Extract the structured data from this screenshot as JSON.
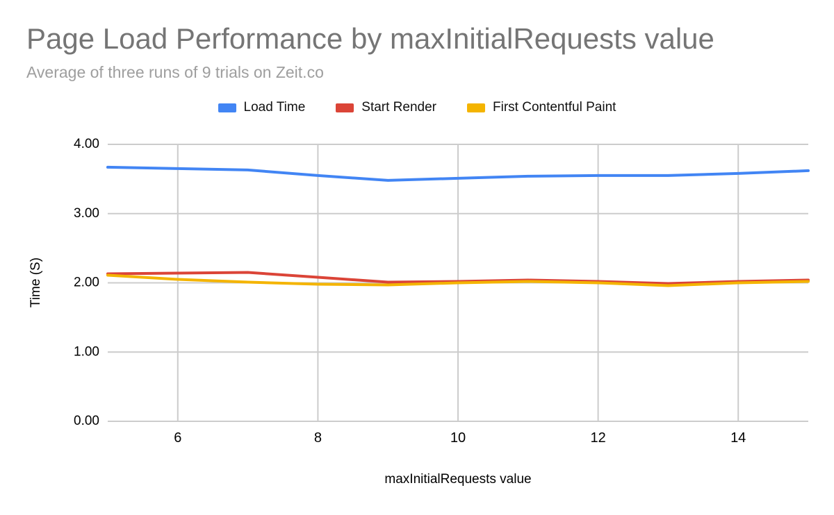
{
  "chart_data": {
    "type": "line",
    "title": "Page Load Performance by maxInitialRequests value",
    "subtitle": "Average of three runs of 9 trials on Zeit.co",
    "xlabel": "maxInitialRequests value",
    "ylabel": "Time (S)",
    "x": [
      5,
      6,
      7,
      8,
      9,
      10,
      11,
      12,
      13,
      14,
      15
    ],
    "series": [
      {
        "name": "Load Time",
        "color": "#4285F4",
        "values": [
          3.67,
          3.65,
          3.63,
          3.55,
          3.48,
          3.51,
          3.54,
          3.55,
          3.55,
          3.58,
          3.62
        ]
      },
      {
        "name": "Start Render",
        "color": "#DB4437",
        "values": [
          2.13,
          2.14,
          2.15,
          2.08,
          2.01,
          2.02,
          2.04,
          2.02,
          1.99,
          2.02,
          2.04
        ]
      },
      {
        "name": "First Contentful Paint",
        "color": "#F4B400",
        "values": [
          2.11,
          2.05,
          2.01,
          1.98,
          1.97,
          2.0,
          2.02,
          2.0,
          1.96,
          2.0,
          2.02
        ]
      }
    ],
    "xlim": [
      5,
      15
    ],
    "ylim": [
      0,
      4
    ],
    "y_ticks": [
      "0.00",
      "1.00",
      "2.00",
      "3.00",
      "4.00"
    ],
    "x_ticks": [
      "6",
      "8",
      "10",
      "12",
      "14"
    ],
    "grid": true,
    "legend_position": "top",
    "grid_color": "#cccccc"
  }
}
